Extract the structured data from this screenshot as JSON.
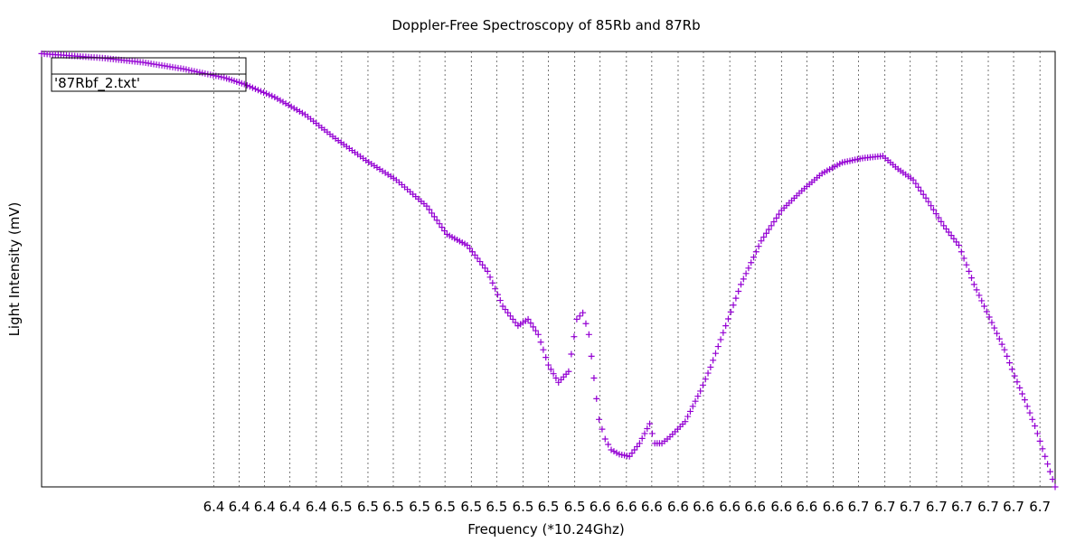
{
  "chart_data": {
    "type": "scatter",
    "title": "Doppler-Free Spectroscopy of 85Rb and 87Rb",
    "xlabel": "Frequency (*10.24Ghz)",
    "ylabel": "Light Intensity (mV)",
    "xlim": [
      0,
      1
    ],
    "ylim": [
      0,
      1
    ],
    "grid": "vertical dotted lines at each x tick",
    "legend_position": "top-left",
    "x_ticks": [
      {
        "label": "6.4",
        "x": 0.17
      },
      {
        "label": "6.4",
        "x": 0.195
      },
      {
        "label": "6.4",
        "x": 0.22
      },
      {
        "label": "6.4",
        "x": 0.245
      },
      {
        "label": "6.4",
        "x": 0.271
      },
      {
        "label": "6.5",
        "x": 0.296
      },
      {
        "label": "6.5",
        "x": 0.322
      },
      {
        "label": "6.5",
        "x": 0.347
      },
      {
        "label": "6.5",
        "x": 0.373
      },
      {
        "label": "6.5",
        "x": 0.398
      },
      {
        "label": "6.5",
        "x": 0.424
      },
      {
        "label": "6.5",
        "x": 0.449
      },
      {
        "label": "6.5",
        "x": 0.475
      },
      {
        "label": "6.5",
        "x": 0.5
      },
      {
        "label": "6.5",
        "x": 0.526
      },
      {
        "label": "6.6",
        "x": 0.551
      },
      {
        "label": "6.6",
        "x": 0.577
      },
      {
        "label": "6.6",
        "x": 0.602
      },
      {
        "label": "6.6",
        "x": 0.628
      },
      {
        "label": "6.6",
        "x": 0.653
      },
      {
        "label": "6.6",
        "x": 0.679
      },
      {
        "label": "6.6",
        "x": 0.704
      },
      {
        "label": "6.6",
        "x": 0.73
      },
      {
        "label": "6.6",
        "x": 0.755
      },
      {
        "label": "6.6",
        "x": 0.781
      },
      {
        "label": "6.7",
        "x": 0.806
      },
      {
        "label": "6.7",
        "x": 0.832
      },
      {
        "label": "6.7",
        "x": 0.857
      },
      {
        "label": "6.7",
        "x": 0.883
      },
      {
        "label": "6.7",
        "x": 0.908
      },
      {
        "label": "6.7",
        "x": 0.934
      },
      {
        "label": "6.7",
        "x": 0.959
      },
      {
        "label": "6.7",
        "x": 0.985
      }
    ],
    "series": [
      {
        "name": "'87Rbf_2.txt'",
        "marker": "+",
        "color": "#9400d3",
        "x": [
          0,
          0.03,
          0.06,
          0.1,
          0.14,
          0.18,
          0.2,
          0.23,
          0.26,
          0.29,
          0.32,
          0.35,
          0.38,
          0.4,
          0.42,
          0.44,
          0.455,
          0.47,
          0.48,
          0.49,
          0.5,
          0.51,
          0.52,
          0.528,
          0.534,
          0.54,
          0.545,
          0.55,
          0.556,
          0.562,
          0.57,
          0.58,
          0.59,
          0.6,
          0.605,
          0.612,
          0.62,
          0.635,
          0.65,
          0.66,
          0.675,
          0.69,
          0.71,
          0.73,
          0.75,
          0.77,
          0.79,
          0.81,
          0.83,
          0.845,
          0.86,
          0.875,
          0.89,
          0.905,
          0.92,
          0.935,
          0.95,
          0.96,
          0.97,
          0.98,
          0.99,
          1.0
        ],
        "y": [
          0.995,
          0.99,
          0.985,
          0.975,
          0.96,
          0.94,
          0.925,
          0.895,
          0.855,
          0.8,
          0.75,
          0.705,
          0.645,
          0.58,
          0.555,
          0.495,
          0.415,
          0.37,
          0.385,
          0.35,
          0.28,
          0.24,
          0.265,
          0.385,
          0.4,
          0.35,
          0.25,
          0.155,
          0.11,
          0.085,
          0.075,
          0.07,
          0.1,
          0.145,
          0.1,
          0.1,
          0.115,
          0.15,
          0.22,
          0.275,
          0.37,
          0.465,
          0.565,
          0.635,
          0.68,
          0.72,
          0.745,
          0.755,
          0.76,
          0.73,
          0.705,
          0.655,
          0.6,
          0.555,
          0.465,
          0.39,
          0.315,
          0.255,
          0.2,
          0.14,
          0.07,
          0.0
        ]
      }
    ]
  }
}
